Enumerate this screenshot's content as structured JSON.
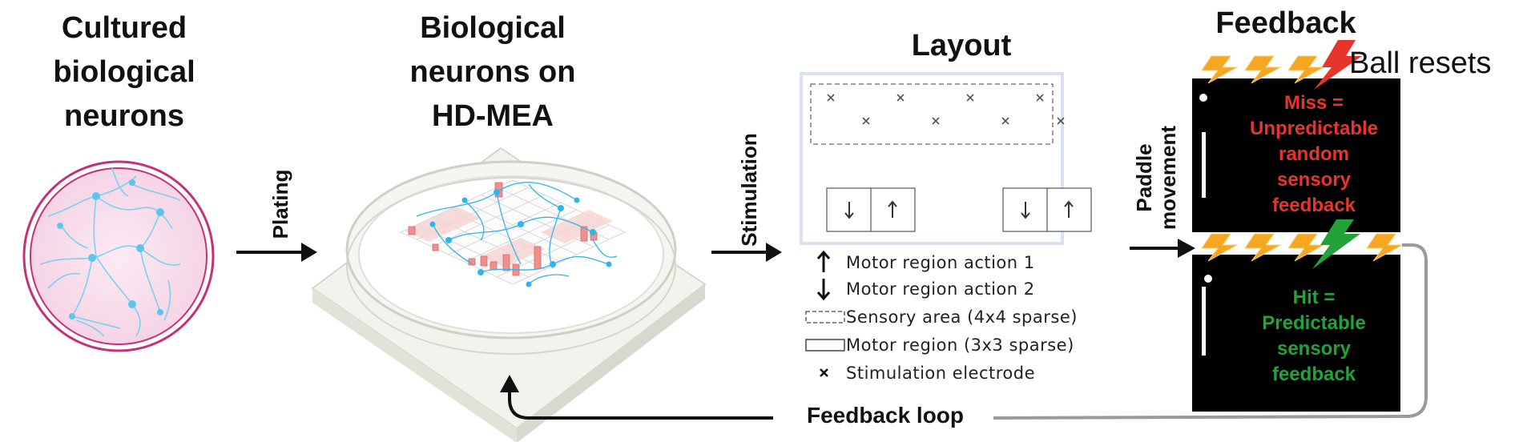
{
  "panel1": {
    "title_lines": [
      "Cultured",
      "biological",
      "neurons"
    ]
  },
  "panel2": {
    "title_lines": [
      "Biological",
      "neurons on",
      "HD-MEA"
    ]
  },
  "panel3": {
    "title": "Layout"
  },
  "panel4": {
    "title": "Feedback"
  },
  "arrows": {
    "plating": "Plating",
    "stimulation": "Stimulation",
    "paddle_lines": [
      "Paddle",
      "movement"
    ],
    "feedback_loop": "Feedback loop"
  },
  "legend": [
    {
      "icon": "arrow-up-icon",
      "label": "Motor region action 1"
    },
    {
      "icon": "arrow-down-icon",
      "label": "Motor region action 2"
    },
    {
      "icon": "dashed-rect-icon",
      "label": "Sensory area (4x4 sparse)"
    },
    {
      "icon": "solid-rect-icon",
      "label": "Motor region (3x3 sparse)"
    },
    {
      "icon": "cross-icon",
      "label": "Stimulation electrode"
    }
  ],
  "feedback": {
    "ball_resets": "Ball resets",
    "miss_lines": [
      "Miss =",
      "Unpredictable",
      "random",
      "sensory",
      "feedback"
    ],
    "hit_lines": [
      "Hit =",
      "Predictable",
      "sensory",
      "feedback"
    ]
  },
  "colors": {
    "miss": "#e8352b",
    "hit": "#22a33a",
    "bolt": "#f5a623",
    "neuron": "#3cb8e8",
    "dish_rim": "#c4307a",
    "screen": "#000000"
  }
}
